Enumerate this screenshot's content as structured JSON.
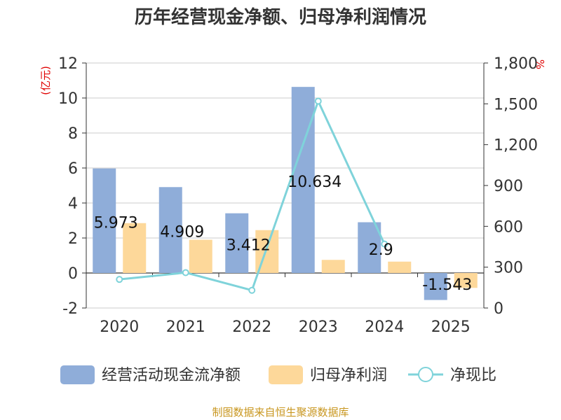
{
  "chart_data": {
    "type": "bar",
    "title": "历年经营现金净额、归母净利润情况",
    "categories": [
      "2020",
      "2021",
      "2022",
      "2023",
      "2024",
      "2025"
    ],
    "left_axis": {
      "label": "(亿元)",
      "min": -2,
      "max": 12,
      "ticks": [
        -2,
        0,
        2,
        4,
        6,
        8,
        10,
        12
      ],
      "tick_labels": [
        "-2",
        "0",
        "2",
        "4",
        "6",
        "8",
        "10",
        "12"
      ]
    },
    "right_axis": {
      "label": "%",
      "min": 0,
      "max": 1800,
      "ticks": [
        0,
        300,
        600,
        900,
        1200,
        1500,
        1800
      ],
      "tick_labels": [
        "0",
        "300",
        "600",
        "900",
        "1,200",
        "1,500",
        "1,800"
      ]
    },
    "series": [
      {
        "name": "经营活动现金流净额",
        "kind": "bar",
        "axis": "left",
        "color": "#8fadd9",
        "values": [
          5.973,
          4.909,
          3.412,
          10.634,
          2.9,
          -1.543
        ],
        "labels": [
          "5.973",
          "4.909",
          "3.412",
          "10.634",
          "2.9",
          "-1.543"
        ]
      },
      {
        "name": "归母净利润",
        "kind": "bar",
        "axis": "left",
        "color": "#fdd89a",
        "values": [
          2.85,
          1.9,
          2.45,
          0.75,
          0.65,
          -0.85
        ]
      },
      {
        "name": "净现比",
        "kind": "line",
        "axis": "right",
        "color": "#7fd3da",
        "values": [
          210,
          260,
          130,
          1520,
          470,
          null
        ]
      }
    ]
  },
  "footer": {
    "source": "制图数据来自恒生聚源数据库"
  }
}
